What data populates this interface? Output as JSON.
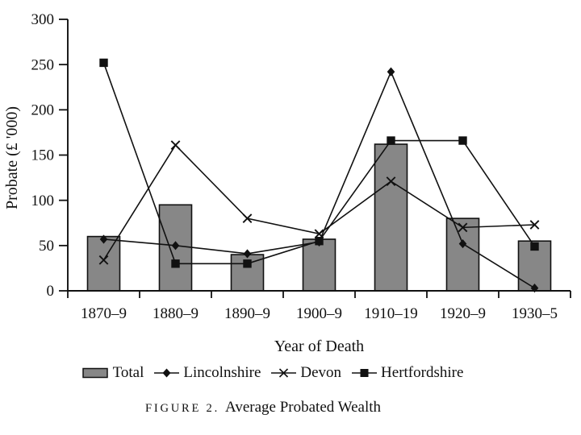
{
  "figure": {
    "caption_label": "FIGURE 2.",
    "caption_title": "Average Probated Wealth"
  },
  "chart_data": {
    "type": "bar+line",
    "title": "Average Probated Wealth",
    "xlabel": "Year of Death",
    "ylabel": "Probate (£ '000)",
    "ylim": [
      0,
      300
    ],
    "yticks": [
      0,
      50,
      100,
      150,
      200,
      250,
      300
    ],
    "grid": false,
    "legend_position": "bottom",
    "categories": [
      "1870–9",
      "1880–9",
      "1890–9",
      "1900–9",
      "1910–19",
      "1920–9",
      "1930–5"
    ],
    "bar_series": {
      "name": "Total",
      "fill": "#878787",
      "stroke": "#111111",
      "values": [
        60,
        95,
        40,
        57,
        162,
        80,
        55
      ]
    },
    "line_series": [
      {
        "name": "Lincolnshire",
        "marker": "diamond",
        "color": "#111111",
        "values": [
          57,
          50,
          41,
          54,
          242,
          52,
          3
        ]
      },
      {
        "name": "Devon",
        "marker": "x",
        "color": "#111111",
        "values": [
          34,
          161,
          80,
          63,
          121,
          70,
          73
        ]
      },
      {
        "name": "Hertfordshire",
        "marker": "square",
        "color": "#111111",
        "values": [
          252,
          30,
          30,
          55,
          166,
          166,
          49
        ]
      }
    ]
  }
}
